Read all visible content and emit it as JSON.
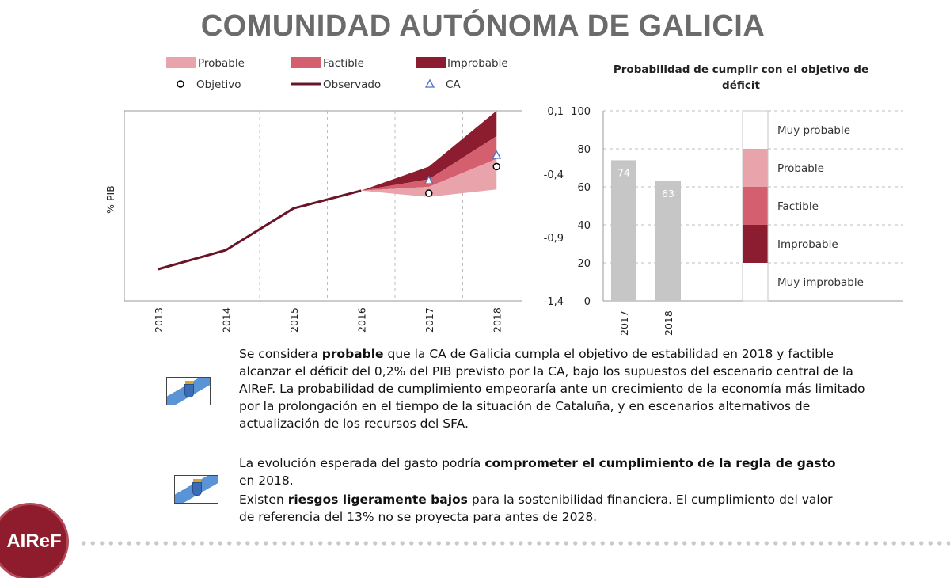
{
  "page": {
    "title": "COMUNIDAD AUTÓNOMA DE GALICIA",
    "logo_text": "AIReF"
  },
  "colors": {
    "probable": "#e8a3ab",
    "factible": "#d4606f",
    "improbable": "#8c1c2f",
    "observado": "#6a1428",
    "bars": "#c6c6c6",
    "ca_marker": "#4a72c4",
    "title": "#6b6b6b"
  },
  "chart_data": [
    {
      "type": "line",
      "ylabel": "% PIB",
      "legend": [
        {
          "label": "Probable",
          "kind": "band",
          "color": "#e8a3ab"
        },
        {
          "label": "Factible",
          "kind": "band",
          "color": "#d4606f"
        },
        {
          "label": "Improbable",
          "kind": "band",
          "color": "#8c1c2f"
        },
        {
          "label": "Objetivo",
          "kind": "circle"
        },
        {
          "label": "Observado",
          "kind": "line",
          "color": "#6a1428"
        },
        {
          "label": "CA",
          "kind": "triangle",
          "color": "#4a72c4"
        }
      ],
      "legend_position": "top",
      "x": [
        "2013",
        "2014",
        "2015",
        "2016",
        "2017",
        "2018"
      ],
      "ylim": [
        -1.4,
        0.1
      ],
      "yticks": [
        "0,1",
        "-0,4",
        "-0,9",
        "-1,4"
      ],
      "grid": "vertical-dashed",
      "series": [
        {
          "name": "Observado",
          "x": [
            "2013",
            "2014",
            "2015",
            "2016"
          ],
          "values": [
            -1.15,
            -1.0,
            -0.67,
            -0.53
          ]
        }
      ],
      "fan": {
        "x": [
          "2016",
          "2017",
          "2018"
        ],
        "probable_low": [
          -0.53,
          -0.58,
          -0.52
        ],
        "probable_high": [
          -0.53,
          -0.5,
          -0.28
        ],
        "factible_high": [
          -0.53,
          -0.44,
          -0.1
        ],
        "improbable_high": [
          -0.53,
          -0.34,
          0.1
        ]
      },
      "objetivo": [
        {
          "x": "2017",
          "value": -0.55
        },
        {
          "x": "2018",
          "value": -0.34
        }
      ],
      "ca": [
        {
          "x": "2017",
          "value": -0.45
        },
        {
          "x": "2018",
          "value": -0.25
        }
      ]
    },
    {
      "type": "bar",
      "title": "Probabilidad de cumplir con el objetivo de déficit",
      "categories": [
        "2017",
        "2018"
      ],
      "values": [
        74,
        63
      ],
      "data_labels": [
        "74",
        "63"
      ],
      "ylim": [
        0,
        100
      ],
      "yticks": [
        "0",
        "20",
        "40",
        "60",
        "80",
        "100"
      ],
      "grid": "horizontal-dashed",
      "scale": [
        {
          "label": "Muy probable",
          "from": 80,
          "to": 100,
          "color": "#ffffff"
        },
        {
          "label": "Probable",
          "from": 60,
          "to": 80,
          "color": "#e8a3ab"
        },
        {
          "label": "Factible",
          "from": 40,
          "to": 60,
          "color": "#d4606f"
        },
        {
          "label": "Improbable",
          "from": 20,
          "to": 40,
          "color": "#8c1c2f"
        },
        {
          "label": "Muy improbable",
          "from": 0,
          "to": 20,
          "color": "#ffffff"
        }
      ]
    }
  ],
  "text": {
    "p1": [
      {
        "t": "Se considera ",
        "b": false
      },
      {
        "t": "probable",
        "b": true
      },
      {
        "t": " que la CA de Galicia cumpla el objetivo de estabilidad en 2018 y factible alcanzar el déficit del 0,2% del PIB previsto por la CA, bajo los supuestos del escenario central de la AIReF. La probabilidad de cumplimiento empeoraría ante un crecimiento de la economía más limitado por la prolongación en el tiempo de la situación de Cataluña, y en escenarios alternativos de actualización de los recursos del SFA.",
        "b": false
      }
    ],
    "p2": [
      {
        "t": "La evolución esperada del gasto podría ",
        "b": false
      },
      {
        "t": "comprometer el cumplimiento de la regla de gasto",
        "b": true
      },
      {
        "t": " en 2018.",
        "b": false
      }
    ],
    "p3": [
      {
        "t": "Existen ",
        "b": false
      },
      {
        "t": "riesgos ligeramente bajos",
        "b": true
      },
      {
        "t": " para la sostenibilidad financiera. El cumplimiento del valor de referencia del 13% no se proyecta para antes de 2028.",
        "b": false
      }
    ]
  }
}
